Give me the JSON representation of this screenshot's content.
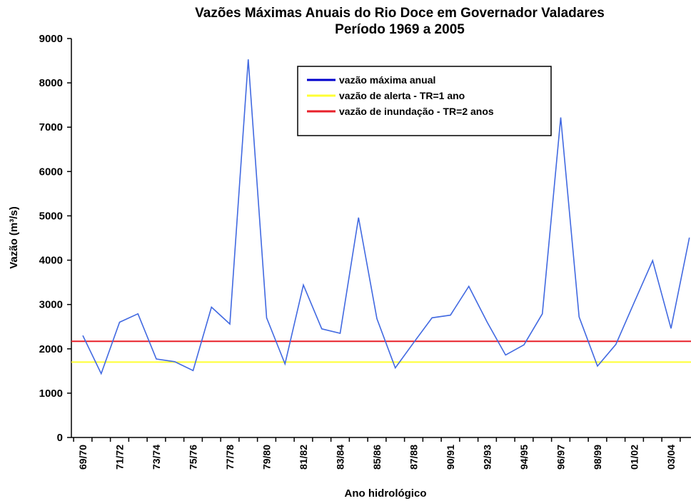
{
  "chart_data": {
    "type": "line",
    "title": "Vazões Máximas Anuais do Rio Doce em Governador Valadares",
    "subtitle": "Período 1969 a 2005",
    "x_label": "Ano hidrológico",
    "y_label": "Vazão (m³/s)",
    "categories": [
      "69/70",
      null,
      "71/72",
      null,
      "73/74",
      null,
      "75/76",
      null,
      "77/78",
      null,
      "79/80",
      null,
      "81/82",
      null,
      "83/84",
      null,
      "85/86",
      null,
      "87/88",
      null,
      "90/91",
      null,
      "92/93",
      null,
      "94/95",
      null,
      "96/97",
      null,
      "98/99",
      null,
      "01/02",
      null,
      "03/04",
      null
    ],
    "series": [
      {
        "name": "vazão máxima anual",
        "color": "#4169e1",
        "values": [
          2300,
          1440,
          2600,
          2790,
          1770,
          1710,
          1510,
          2940,
          2560,
          8530,
          2700,
          1660,
          3440,
          2450,
          2350,
          4960,
          2680,
          1570,
          2140,
          2700,
          2760,
          3410,
          2600,
          1860,
          2090,
          2790,
          7220,
          2720,
          1610,
          2100,
          3050,
          3990,
          2460,
          4510
        ]
      }
    ],
    "reference_lines": [
      {
        "name": "vazão de alerta - TR=1 ano",
        "color": "#ffff33",
        "value": 1700
      },
      {
        "name": "vazão de inundação - TR=2 anos",
        "color": "#e8202a",
        "value": 2170
      }
    ],
    "legend_series_color": "#0000cc",
    "ylim": [
      0,
      9000
    ],
    "yticks": [
      0,
      1000,
      2000,
      3000,
      4000,
      5000,
      6000,
      7000,
      8000,
      9000
    ]
  }
}
